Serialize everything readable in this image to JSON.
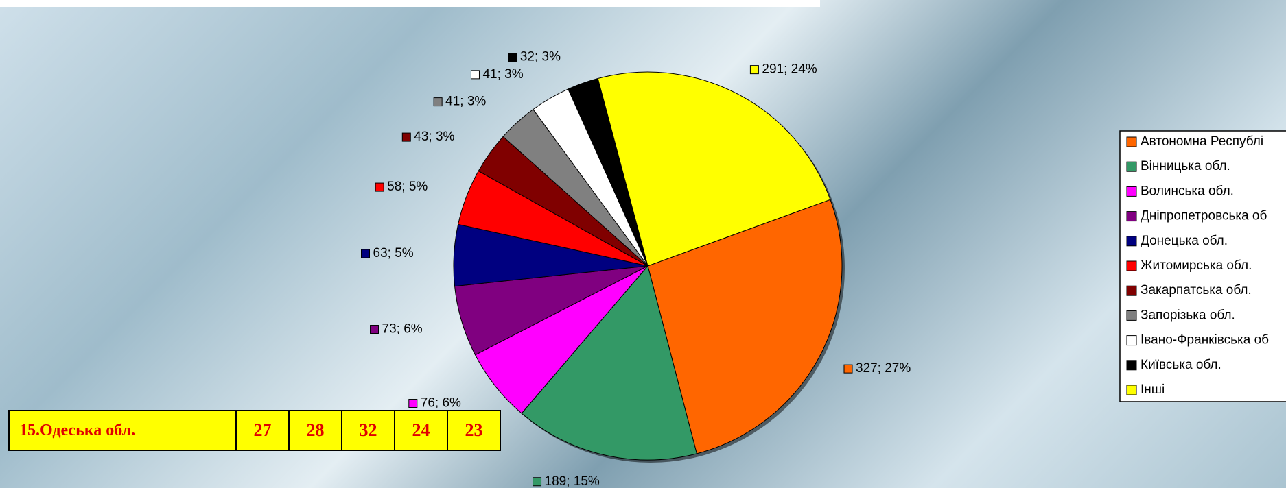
{
  "chart_data": {
    "type": "pie",
    "categories": [
      "Автономна Республі",
      "Вінницька обл.",
      "Волинська обл.",
      "Дніпропетровська об",
      "Донецька обл.",
      "Житомирська обл.",
      "Закарпатська обл.",
      "Запорізька обл.",
      "Івано-Франківська об",
      "Київська обл.",
      "Інші"
    ],
    "values": [
      327,
      189,
      76,
      73,
      63,
      58,
      43,
      41,
      41,
      32,
      291
    ],
    "value_labels": [
      "327; 27%",
      "189; 15%",
      "76; 6%",
      "73; 6%",
      "63; 5%",
      "58; 5%",
      "43; 3%",
      "41; 3%",
      "41; 3%",
      "32; 3%",
      "291; 24%"
    ],
    "colors": [
      "#ff6600",
      "#339966",
      "#ff00ff",
      "#800080",
      "#000080",
      "#ff0000",
      "#800000",
      "#808080",
      "#ffffff",
      "#000000",
      "#ffff00"
    ],
    "legend": "right"
  },
  "table": {
    "rows": [
      [
        "15.Одеська обл.",
        27,
        28,
        32,
        24,
        23
      ]
    ]
  }
}
